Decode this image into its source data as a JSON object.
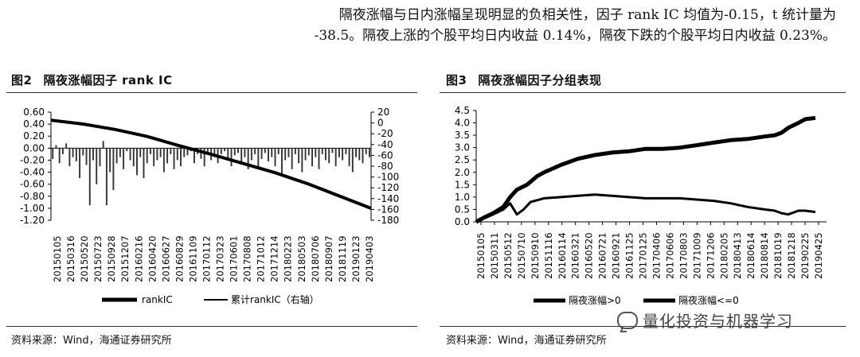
{
  "intro": {
    "line1": "隔夜涨幅与日内涨幅呈现明显的负相关性，因子 rank IC 均值为-0.15，t 统计量为",
    "line2": "-38.5。隔夜上涨的个股平均日内收益 0.14%，隔夜下跌的个股平均日内收益 0.23%。"
  },
  "fig2": {
    "num": "图2",
    "title": "隔夜涨幅因子 rank IC",
    "source": "资料来源：Wind，海通证券研究所"
  },
  "fig3": {
    "num": "图3",
    "title": "隔夜涨幅因子分组表现",
    "source": "资料来源：Wind，海通证券研究所"
  },
  "watermark": "量化投资与机器学习",
  "chart_data": [
    {
      "type": "bar",
      "title": "隔夜涨幅因子 rank IC",
      "x_tick_labels": [
        "20150105",
        "20150316",
        "20150520",
        "20150723",
        "20150928",
        "20151207",
        "20160216",
        "20160420",
        "20160627",
        "20160829",
        "20161109",
        "20170112",
        "20170323",
        "20170601",
        "20170808",
        "20171012",
        "20171214",
        "20180223",
        "20180503",
        "20180706",
        "20180907",
        "20181119",
        "20190123",
        "20190403"
      ],
      "y_left_ticks": [
        "0.60",
        "0.40",
        "0.20",
        "0.00",
        "-0.20",
        "-0.40",
        "-0.60",
        "-0.80",
        "-1.00",
        "-1.20"
      ],
      "ylim_left": [
        -1.2,
        0.6
      ],
      "y_right_ticks": [
        "20",
        "0",
        "-20",
        "-40",
        "-60",
        "-80",
        "-100",
        "-120",
        "-140",
        "-160",
        "-180"
      ],
      "ylim_right": [
        -180,
        20
      ],
      "series": [
        {
          "name": "rankIC",
          "kind": "bar",
          "axis": "left",
          "values": [
            -0.18,
            0.05,
            -0.25,
            -0.1,
            0.08,
            -0.3,
            -0.15,
            -0.22,
            -0.5,
            -0.12,
            -0.28,
            -0.95,
            -0.2,
            -0.6,
            -0.3,
            0.12,
            -0.95,
            -0.4,
            -0.7,
            -0.25,
            -0.15,
            -0.35,
            -0.05,
            -0.2,
            -0.3,
            -0.45,
            -0.15,
            -0.5,
            -0.25,
            -0.1,
            -0.3,
            -0.2,
            -0.15,
            -0.4,
            -0.25,
            -0.1,
            -0.35,
            -0.2,
            -0.3,
            -0.15,
            -0.12,
            -0.05,
            -0.25,
            -0.1,
            -0.18,
            -0.3,
            -0.08,
            -0.2,
            -0.15,
            -0.25,
            -0.1,
            -0.05,
            -0.2,
            -0.3,
            -0.12,
            -0.08,
            -0.25,
            -0.15,
            -0.35,
            -0.2,
            -0.1,
            -0.3,
            -0.18,
            -0.08,
            -0.22,
            -0.15,
            -0.3,
            -0.1,
            -0.45,
            -0.2,
            -0.15,
            -0.35,
            -0.1,
            -0.25,
            -0.4,
            -0.2,
            -0.12,
            -0.3,
            -0.15,
            -0.35,
            -0.1,
            -0.2,
            -0.25,
            -0.08,
            -0.3,
            -0.15,
            -0.2,
            -0.1,
            -0.3,
            -0.4,
            -0.15,
            -0.2,
            -0.25,
            -0.1,
            -0.15
          ]
        },
        {
          "name": "累计rankIC（右轴）",
          "kind": "line",
          "axis": "right",
          "x": [
            0,
            0.1,
            0.2,
            0.3,
            0.4,
            0.5,
            0.6,
            0.7,
            0.8,
            0.9,
            1.0
          ],
          "values": [
            5,
            -2,
            -12,
            -25,
            -42,
            -58,
            -75,
            -92,
            -112,
            -135,
            -158
          ]
        }
      ],
      "legend": "bottom"
    },
    {
      "type": "line",
      "title": "隔夜涨幅因子分组表现",
      "x_tick_labels": [
        "20150105",
        "20150311",
        "20150512",
        "20150710",
        "20150910",
        "20151116",
        "20160114",
        "20160321",
        "20160520",
        "20160721",
        "20160921",
        "20161125",
        "20170125",
        "20170406",
        "20170606",
        "20170803",
        "20171009",
        "20171206",
        "20180205",
        "20180413",
        "20180614",
        "20180814",
        "20181019",
        "20181218",
        "20190225",
        "20190425"
      ],
      "y_ticks": [
        "4.5",
        "4.0",
        "3.5",
        "3.0",
        "2.5",
        "2.0",
        "1.5",
        "1.0",
        "0.5",
        "0.0"
      ],
      "ylim": [
        0,
        4.5
      ],
      "series": [
        {
          "name": "隔夜涨幅>0",
          "x": [
            0,
            0.02,
            0.05,
            0.08,
            0.1,
            0.12,
            0.15,
            0.18,
            0.2,
            0.25,
            0.3,
            0.35,
            0.4,
            0.45,
            0.5,
            0.55,
            0.6,
            0.65,
            0.7,
            0.75,
            0.8,
            0.85,
            0.88,
            0.9,
            0.92,
            0.95,
            0.97,
            1.0
          ],
          "values": [
            0.0,
            0.15,
            0.35,
            0.6,
            1.0,
            1.3,
            1.5,
            1.85,
            2.0,
            2.3,
            2.55,
            2.7,
            2.8,
            2.85,
            2.95,
            2.95,
            3.0,
            3.1,
            3.2,
            3.3,
            3.35,
            3.45,
            3.5,
            3.6,
            3.8,
            4.0,
            4.15,
            4.2
          ]
        },
        {
          "name": "隔夜涨幅<=0",
          "x": [
            0,
            0.02,
            0.05,
            0.08,
            0.1,
            0.12,
            0.14,
            0.16,
            0.2,
            0.25,
            0.3,
            0.35,
            0.4,
            0.45,
            0.5,
            0.55,
            0.6,
            0.65,
            0.7,
            0.75,
            0.8,
            0.85,
            0.88,
            0.9,
            0.92,
            0.95,
            0.97,
            1.0
          ],
          "values": [
            0.0,
            0.12,
            0.3,
            0.5,
            0.75,
            0.3,
            0.5,
            0.8,
            0.95,
            1.0,
            1.05,
            1.1,
            1.05,
            1.0,
            0.95,
            0.95,
            0.95,
            0.9,
            0.85,
            0.75,
            0.6,
            0.5,
            0.45,
            0.35,
            0.3,
            0.45,
            0.45,
            0.4
          ]
        }
      ],
      "legend": "bottom"
    }
  ]
}
